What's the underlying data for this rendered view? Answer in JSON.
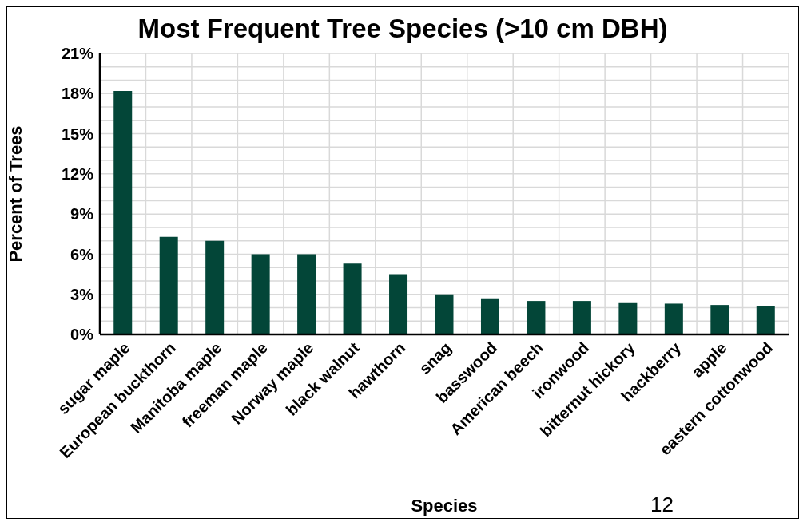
{
  "chart_data": {
    "type": "bar",
    "title": "Most Frequent Tree Species (>10 cm DBH)",
    "xlabel": "Species",
    "ylabel": "Percent of Trees",
    "categories": [
      "sugar maple",
      "European buckthorn",
      "Manitoba maple",
      "freeman maple",
      "Norway maple",
      "black walnut",
      "hawthorn",
      "snag",
      "basswood",
      "American beech",
      "ironwood",
      "bitternut hickory",
      "hackberry",
      "apple",
      "eastern cottonwood"
    ],
    "values": [
      18.2,
      7.3,
      7.0,
      6.0,
      6.0,
      5.3,
      4.5,
      3.0,
      2.7,
      2.5,
      2.5,
      2.4,
      2.3,
      2.2,
      2.1
    ],
    "color": "#034638",
    "ylim": [
      0,
      21
    ],
    "yticks": [
      {
        "value": 0,
        "label": "0%"
      },
      {
        "value": 1,
        "label": null
      },
      {
        "value": 2,
        "label": null
      },
      {
        "value": 3,
        "label": "3%"
      },
      {
        "value": 4,
        "label": null
      },
      {
        "value": 5,
        "label": null
      },
      {
        "value": 6,
        "label": "6%"
      },
      {
        "value": 7,
        "label": null
      },
      {
        "value": 8,
        "label": null
      },
      {
        "value": 9,
        "label": "9%"
      },
      {
        "value": 10,
        "label": null
      },
      {
        "value": 11,
        "label": null
      },
      {
        "value": 12,
        "label": "12%"
      },
      {
        "value": 13,
        "label": null
      },
      {
        "value": 14,
        "label": null
      },
      {
        "value": 15,
        "label": "15%"
      },
      {
        "value": 16,
        "label": null
      },
      {
        "value": 17,
        "label": null
      },
      {
        "value": 18,
        "label": "18%"
      },
      {
        "value": 19,
        "label": null
      },
      {
        "value": 20,
        "label": null
      },
      {
        "value": 21,
        "label": "21%"
      }
    ],
    "grid": true,
    "annotations": [
      "12"
    ]
  }
}
